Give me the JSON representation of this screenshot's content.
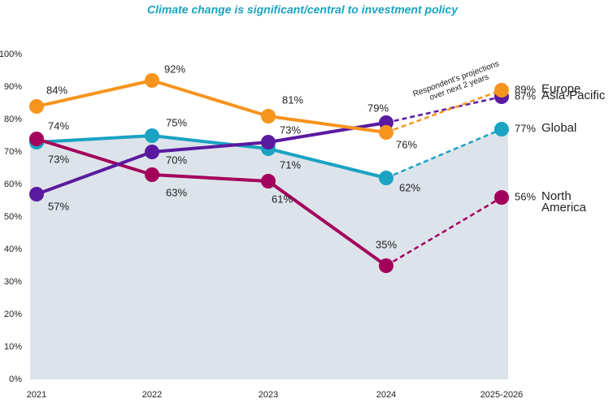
{
  "chart_data": {
    "type": "line",
    "title": "Climate change is significant/central to investment policy",
    "annotation": [
      "Respondent's projections",
      "over next 2 years"
    ],
    "categories": [
      "2021",
      "2022",
      "2023",
      "2024",
      "2025-2026"
    ],
    "ylim": [
      0,
      100
    ],
    "yticks": [
      {
        "value": 0,
        "label": "0%"
      },
      {
        "value": 10,
        "label": "10%"
      },
      {
        "value": 20,
        "label": "20%"
      },
      {
        "value": 30,
        "label": "30%"
      },
      {
        "value": 40,
        "label": "40%"
      },
      {
        "value": 50,
        "label": "50%"
      },
      {
        "value": 60,
        "label": "60%"
      },
      {
        "value": 70,
        "label": "70%"
      },
      {
        "value": 80,
        "label": "80%"
      },
      {
        "value": 90,
        "label": "90%"
      },
      {
        "value": 100,
        "label": "100%"
      }
    ],
    "grid": false,
    "dashed_last_segment": true,
    "area_series": "Global",
    "area_color": "#dde3ea",
    "series": [
      {
        "name": "Global",
        "color": "#1aa3c2",
        "values": [
          73,
          75,
          71,
          62,
          77
        ],
        "value_labels": [
          "73%",
          "75%",
          "71%",
          "62%",
          "77%"
        ]
      },
      {
        "name": "North America",
        "color": "#a3005c",
        "values": [
          74,
          63,
          61,
          35,
          56
        ],
        "value_labels": [
          "74%",
          "63%",
          "61%",
          "35%",
          "56%"
        ]
      },
      {
        "name": "Asia-Pacific",
        "color": "#5a1aa0",
        "values": [
          57,
          70,
          73,
          79,
          87
        ],
        "value_labels": [
          "57%",
          "70%",
          "73%",
          "79%",
          "87%"
        ]
      },
      {
        "name": "Europe",
        "color": "#f7941d",
        "values": [
          84,
          92,
          81,
          76,
          89
        ],
        "value_labels": [
          "84%",
          "92%",
          "81%",
          "76%",
          "89%"
        ]
      }
    ]
  }
}
